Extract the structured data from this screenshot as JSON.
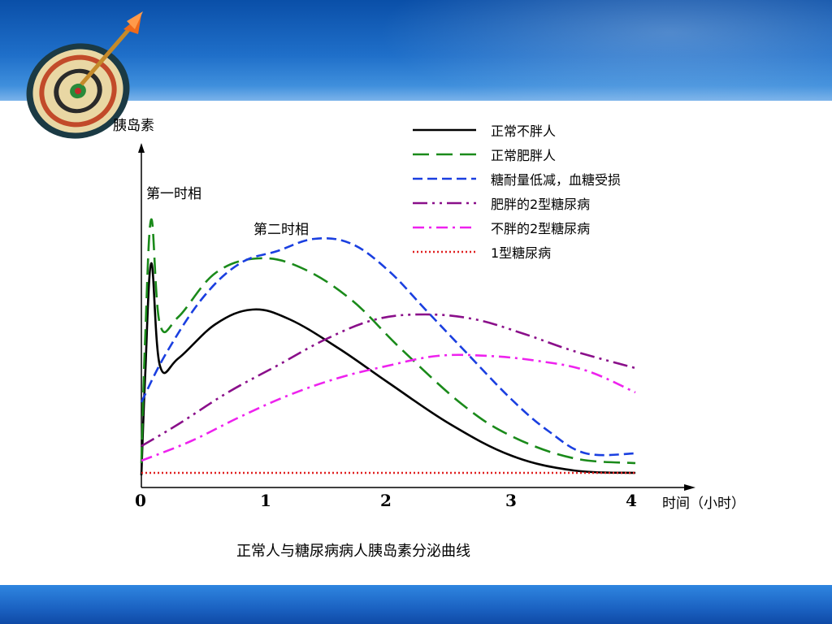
{
  "chart_data": {
    "type": "line",
    "ylabel": "胰岛素",
    "xlabel": "时间（小时）",
    "xlim": [
      0,
      4
    ],
    "ylim": [
      0,
      11
    ],
    "x_ticks": [
      "0",
      "1",
      "2",
      "3",
      "4"
    ],
    "annotations": [
      "第一时相",
      "第二时相"
    ],
    "caption": "正常人与糖尿病病人胰岛素分泌曲线",
    "legend_position": "top-right",
    "series": [
      {
        "name": "正常不胖人",
        "color": "#000000",
        "dash": "solid",
        "x": [
          0,
          0.03,
          0.08,
          0.15,
          0.3,
          0.6,
          0.9,
          1.2,
          1.6,
          2.0,
          2.5,
          3.0,
          3.5,
          4.0
        ],
        "y": [
          0.5,
          4.5,
          9.2,
          5.0,
          5.3,
          6.7,
          7.3,
          6.9,
          5.7,
          4.3,
          2.6,
          1.3,
          0.7,
          0.6
        ]
      },
      {
        "name": "正常肥胖人",
        "color": "#1a8a1a",
        "dash": "long-dash",
        "x": [
          0,
          0.03,
          0.08,
          0.15,
          0.3,
          0.6,
          0.95,
          1.3,
          1.7,
          2.1,
          2.6,
          3.0,
          3.5,
          4.0
        ],
        "y": [
          1.0,
          6.0,
          11.0,
          6.7,
          7.0,
          8.8,
          9.4,
          9.0,
          7.7,
          5.7,
          3.4,
          2.1,
          1.2,
          1.0
        ]
      },
      {
        "name": "糖耐量低减，血糖受损",
        "color": "#1a3fe0",
        "dash": "dash",
        "x": [
          0,
          0.2,
          0.5,
          0.8,
          1.1,
          1.4,
          1.7,
          2.0,
          2.3,
          2.6,
          3.0,
          3.3,
          3.6,
          4.0
        ],
        "y": [
          3.5,
          5.5,
          7.8,
          9.2,
          9.7,
          10.2,
          10.0,
          8.9,
          7.3,
          5.7,
          3.6,
          2.3,
          1.4,
          1.4
        ]
      },
      {
        "name": "肥胖的2型糖尿病",
        "color": "#8a0f8a",
        "dash": "dash-dot-dot",
        "x": [
          0,
          0.3,
          0.7,
          1.1,
          1.5,
          1.9,
          2.3,
          2.7,
          3.1,
          3.5,
          4.0
        ],
        "y": [
          1.7,
          2.6,
          3.9,
          5.0,
          6.1,
          6.9,
          7.1,
          6.9,
          6.3,
          5.6,
          4.9
        ]
      },
      {
        "name": "不胖的2型糖尿病",
        "color": "#ee22ee",
        "dash": "dash-dot",
        "x": [
          0,
          0.4,
          0.8,
          1.2,
          1.6,
          2.0,
          2.4,
          2.8,
          3.2,
          3.6,
          4.0
        ],
        "y": [
          1.1,
          1.9,
          2.9,
          3.8,
          4.5,
          5.0,
          5.4,
          5.4,
          5.2,
          4.8,
          3.9
        ]
      },
      {
        "name": "1型糖尿病",
        "color": "#e02020",
        "dash": "dot",
        "x": [
          0,
          4.0
        ],
        "y": [
          0.6,
          0.6
        ]
      }
    ]
  }
}
